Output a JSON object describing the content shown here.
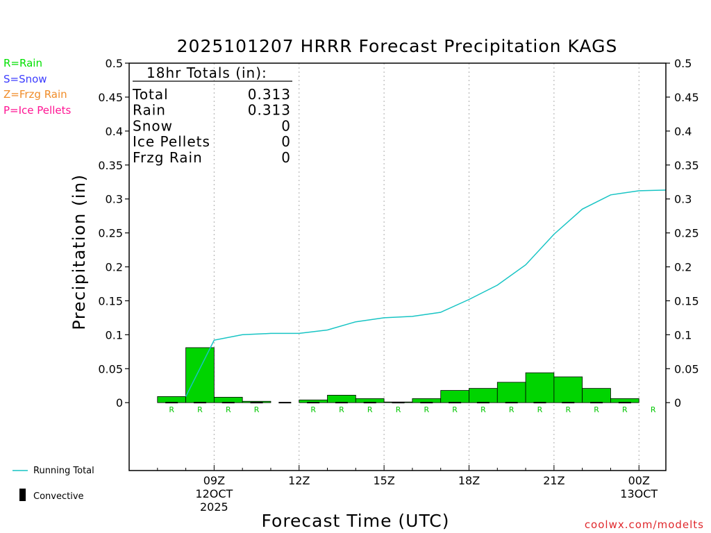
{
  "title": "2025101207 HRRR Forecast Precipitation KAGS",
  "legend_left": [
    {
      "label": "R=Rain",
      "color": "#00e000"
    },
    {
      "label": "S=Snow",
      "color": "#3c3cff"
    },
    {
      "label": "Z=Frzg Rain",
      "color": "#f08c28"
    },
    {
      "label": "P=Ice Pellets",
      "color": "#ff1493"
    }
  ],
  "legend_bottom": {
    "running_total": "Running Total",
    "convective": "Convective"
  },
  "totals": {
    "header": "18hr Totals (in):",
    "rows": [
      {
        "label": "Total",
        "value": "0.313"
      },
      {
        "label": "Rain",
        "value": "0.313"
      },
      {
        "label": "Snow",
        "value": "0"
      },
      {
        "label": "Ice Pellets",
        "value": "0"
      },
      {
        "label": "Frzg Rain",
        "value": "0"
      }
    ]
  },
  "credit": "coolwx.com/modelts",
  "colors": {
    "bar": "#00d400",
    "line": "#17c4c4",
    "rain_marker": "#00c800",
    "credit": "#e0282c",
    "grid": "#aaaaaa"
  },
  "chart_data": {
    "type": "bar",
    "xlabel": "Forecast Time (UTC)",
    "ylabel": "Precipitation (in)",
    "ylim": [
      -0.1,
      0.5
    ],
    "yticks": [
      "0",
      "0.05",
      "0.1",
      "0.15",
      "0.2",
      "0.25",
      "0.3",
      "0.35",
      "0.4",
      "0.45",
      "0.5"
    ],
    "xlim_hours": [
      6.0,
      24.95
    ],
    "x_ticks": [
      {
        "hour": 9,
        "lines": [
          "09Z",
          "12OCT",
          "2025"
        ]
      },
      {
        "hour": 12,
        "lines": [
          "12Z"
        ]
      },
      {
        "hour": 15,
        "lines": [
          "15Z"
        ]
      },
      {
        "hour": 18,
        "lines": [
          "18Z"
        ]
      },
      {
        "hour": 21,
        "lines": [
          "21Z"
        ]
      },
      {
        "hour": 24,
        "lines": [
          "00Z",
          "13OCT"
        ]
      }
    ],
    "hours": [
      8,
      9,
      10,
      11,
      12,
      13,
      14,
      15,
      16,
      17,
      18,
      19,
      20,
      21,
      22,
      23,
      24,
      25
    ],
    "hourly_precip": [
      0.009,
      0.081,
      0.008,
      0.002,
      0.0,
      0.004,
      0.011,
      0.006,
      0.001,
      0.006,
      0.018,
      0.021,
      0.03,
      0.044,
      0.038,
      0.021,
      0.006,
      0.0
    ],
    "running_total": [
      0.009,
      0.092,
      0.1,
      0.102,
      0.102,
      0.107,
      0.119,
      0.125,
      0.127,
      0.133,
      0.152,
      0.173,
      0.203,
      0.248,
      0.285,
      0.306,
      0.312,
      0.313
    ],
    "precip_type": [
      "R",
      "R",
      "R",
      "R",
      "",
      "R",
      "R",
      "R",
      "R",
      "R",
      "R",
      "R",
      "R",
      "R",
      "R",
      "R",
      "R",
      "R"
    ],
    "grid": "vertical dotted at labeled ticks"
  }
}
